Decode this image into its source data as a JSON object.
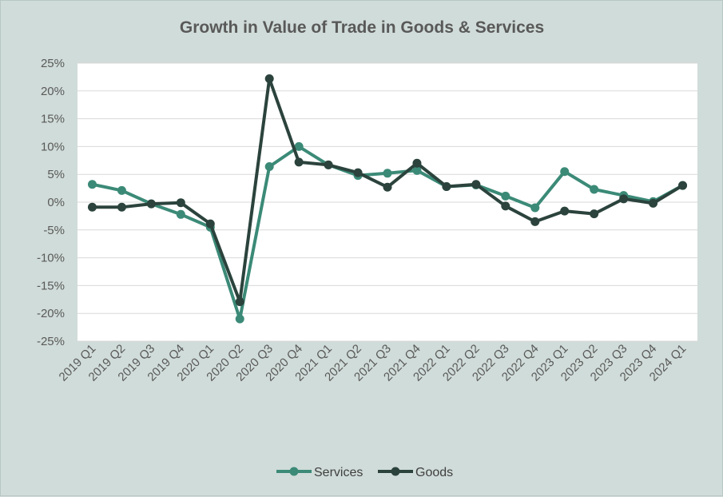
{
  "chart_data": {
    "type": "line",
    "title": "Growth in Value of Trade in Goods & Services",
    "xlabel": "",
    "ylabel": "",
    "ylim": [
      -25,
      25
    ],
    "ytick_step": 5,
    "ytick_labels": [
      "25%",
      "20%",
      "15%",
      "10%",
      "5%",
      "0%",
      "-5%",
      "-10%",
      "-15%",
      "-20%",
      "-25%"
    ],
    "grid": true,
    "legend_position": "bottom",
    "categories": [
      "2019 Q1",
      "2019 Q2",
      "2019 Q3",
      "2019 Q4",
      "2020 Q1",
      "2020 Q2",
      "2020 Q3",
      "2020 Q4",
      "2021 Q1",
      "2021 Q2",
      "2021 Q3",
      "2021 Q4",
      "2022 Q1",
      "2022 Q2",
      "2022 Q3",
      "2022 Q4",
      "2023 Q1",
      "2023 Q2",
      "2023 Q3",
      "2023 Q4",
      "2024 Q1"
    ],
    "series": [
      {
        "name": "Services",
        "color": "#3b8a77",
        "values": [
          3.2,
          2.1,
          -0.3,
          -2.2,
          -4.5,
          -21.0,
          6.4,
          10.0,
          6.7,
          4.8,
          5.2,
          5.7,
          2.8,
          3.1,
          1.1,
          -1.0,
          5.5,
          2.3,
          1.2,
          0.1,
          3.0
        ]
      },
      {
        "name": "Goods",
        "color": "#2b433c",
        "values": [
          -0.9,
          -0.9,
          -0.3,
          -0.1,
          -3.9,
          -17.9,
          22.2,
          7.2,
          6.7,
          5.3,
          2.7,
          7.0,
          2.8,
          3.2,
          -0.7,
          -3.5,
          -1.6,
          -2.1,
          0.6,
          -0.2,
          3.0
        ]
      }
    ]
  }
}
